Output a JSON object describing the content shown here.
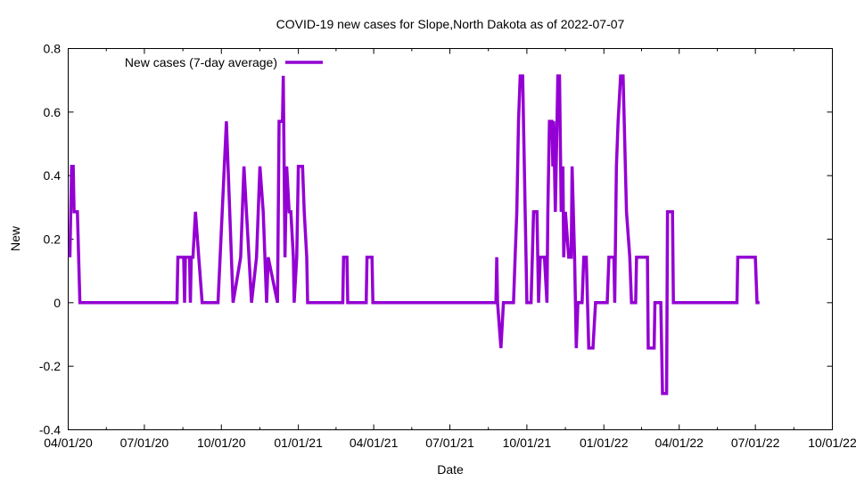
{
  "chart_data": {
    "type": "line",
    "title": "COVID-19 new cases for Slope,North Dakota as of 2022-07-07",
    "xlabel": "Date",
    "ylabel": "New",
    "ylim": [
      -0.4,
      0.8
    ],
    "yticks": [
      "-0.4",
      "-0.2",
      "0",
      "0.2",
      "0.4",
      "0.6",
      "0.8"
    ],
    "ytick_values": [
      -0.4,
      -0.2,
      0,
      0.2,
      0.4,
      0.6,
      0.8
    ],
    "xlim_days": [
      0,
      913
    ],
    "x_origin": "2020-04-01",
    "xticks": [
      "04/01/20",
      "07/01/20",
      "10/01/20",
      "01/01/21",
      "04/01/21",
      "07/01/21",
      "10/01/21",
      "01/01/22",
      "04/01/22",
      "07/01/22",
      "10/01/22"
    ],
    "xtick_days": [
      0,
      91,
      183,
      275,
      365,
      456,
      548,
      640,
      730,
      821,
      913
    ],
    "legend": "top-left",
    "series": [
      {
        "name": "New cases (7-day average)",
        "color": "#9400d3",
        "x": [
          2,
          4,
          6,
          7,
          11,
          14,
          130,
          131,
          138,
          139,
          140,
          145,
          146,
          147,
          149,
          152,
          156,
          160,
          179,
          189,
          197,
          206,
          210,
          213,
          219,
          225,
          227,
          229,
          233,
          237,
          239,
          250,
          252,
          256,
          257,
          259,
          261,
          264,
          266,
          269,
          270,
          273,
          275,
          280,
          282,
          285,
          286,
          328,
          329,
          333,
          334,
          356,
          357,
          363,
          364,
          511,
          512,
          513,
          517,
          520,
          532,
          534,
          536,
          538,
          540,
          543,
          544,
          548,
          553,
          556,
          560,
          562,
          564,
          569,
          572,
          573,
          575,
          578,
          579,
          580,
          582,
          584,
          585,
          587,
          589,
          591,
          592,
          594,
          598,
          601,
          602,
          605,
          607,
          609,
          614,
          616,
          619,
          622,
          627,
          630,
          644,
          646,
          652,
          653,
          655,
          657,
          660,
          663,
          667,
          671,
          673,
          678,
          679,
          692,
          693,
          700,
          701,
          708,
          710,
          715,
          716,
          722,
          723,
          799,
          800,
          821,
          823,
          826
        ],
        "y": [
          0.143,
          0.429,
          0.429,
          0.286,
          0.286,
          0,
          0,
          0.143,
          0.143,
          0,
          0.143,
          0.143,
          0,
          0.143,
          0.143,
          0.286,
          0.143,
          0,
          0,
          0.571,
          0,
          0.143,
          0.429,
          0.286,
          0,
          0.143,
          0.286,
          0.429,
          0.286,
          0,
          0.143,
          0,
          0.571,
          0.571,
          0.714,
          0.143,
          0.429,
          0.286,
          0.286,
          0.143,
          0,
          0.143,
          0.429,
          0.429,
          0.286,
          0.143,
          0,
          0,
          0.143,
          0.143,
          0,
          0,
          0.143,
          0.143,
          0,
          0,
          0.143,
          0,
          -0.143,
          0,
          0,
          0.143,
          0.286,
          0.571,
          0.714,
          0.714,
          0.571,
          0,
          0,
          0.286,
          0.286,
          0,
          0.143,
          0.143,
          0,
          0.286,
          0.571,
          0.571,
          0.429,
          0.571,
          0.286,
          0.571,
          0.714,
          0.714,
          0.286,
          0.429,
          0.143,
          0.286,
          0.143,
          0.143,
          0.429,
          0.143,
          -0.143,
          0,
          0,
          0.143,
          0.143,
          -0.143,
          -0.143,
          0,
          0,
          0.143,
          0.143,
          0,
          0.429,
          0.571,
          0.714,
          0.714,
          0.286,
          0.143,
          0,
          0,
          0.143,
          0.143,
          -0.143,
          -0.143,
          0,
          0,
          -0.286,
          -0.286,
          0.286,
          0.286,
          0,
          0,
          0.143,
          0.143,
          0,
          0
        ]
      }
    ]
  }
}
